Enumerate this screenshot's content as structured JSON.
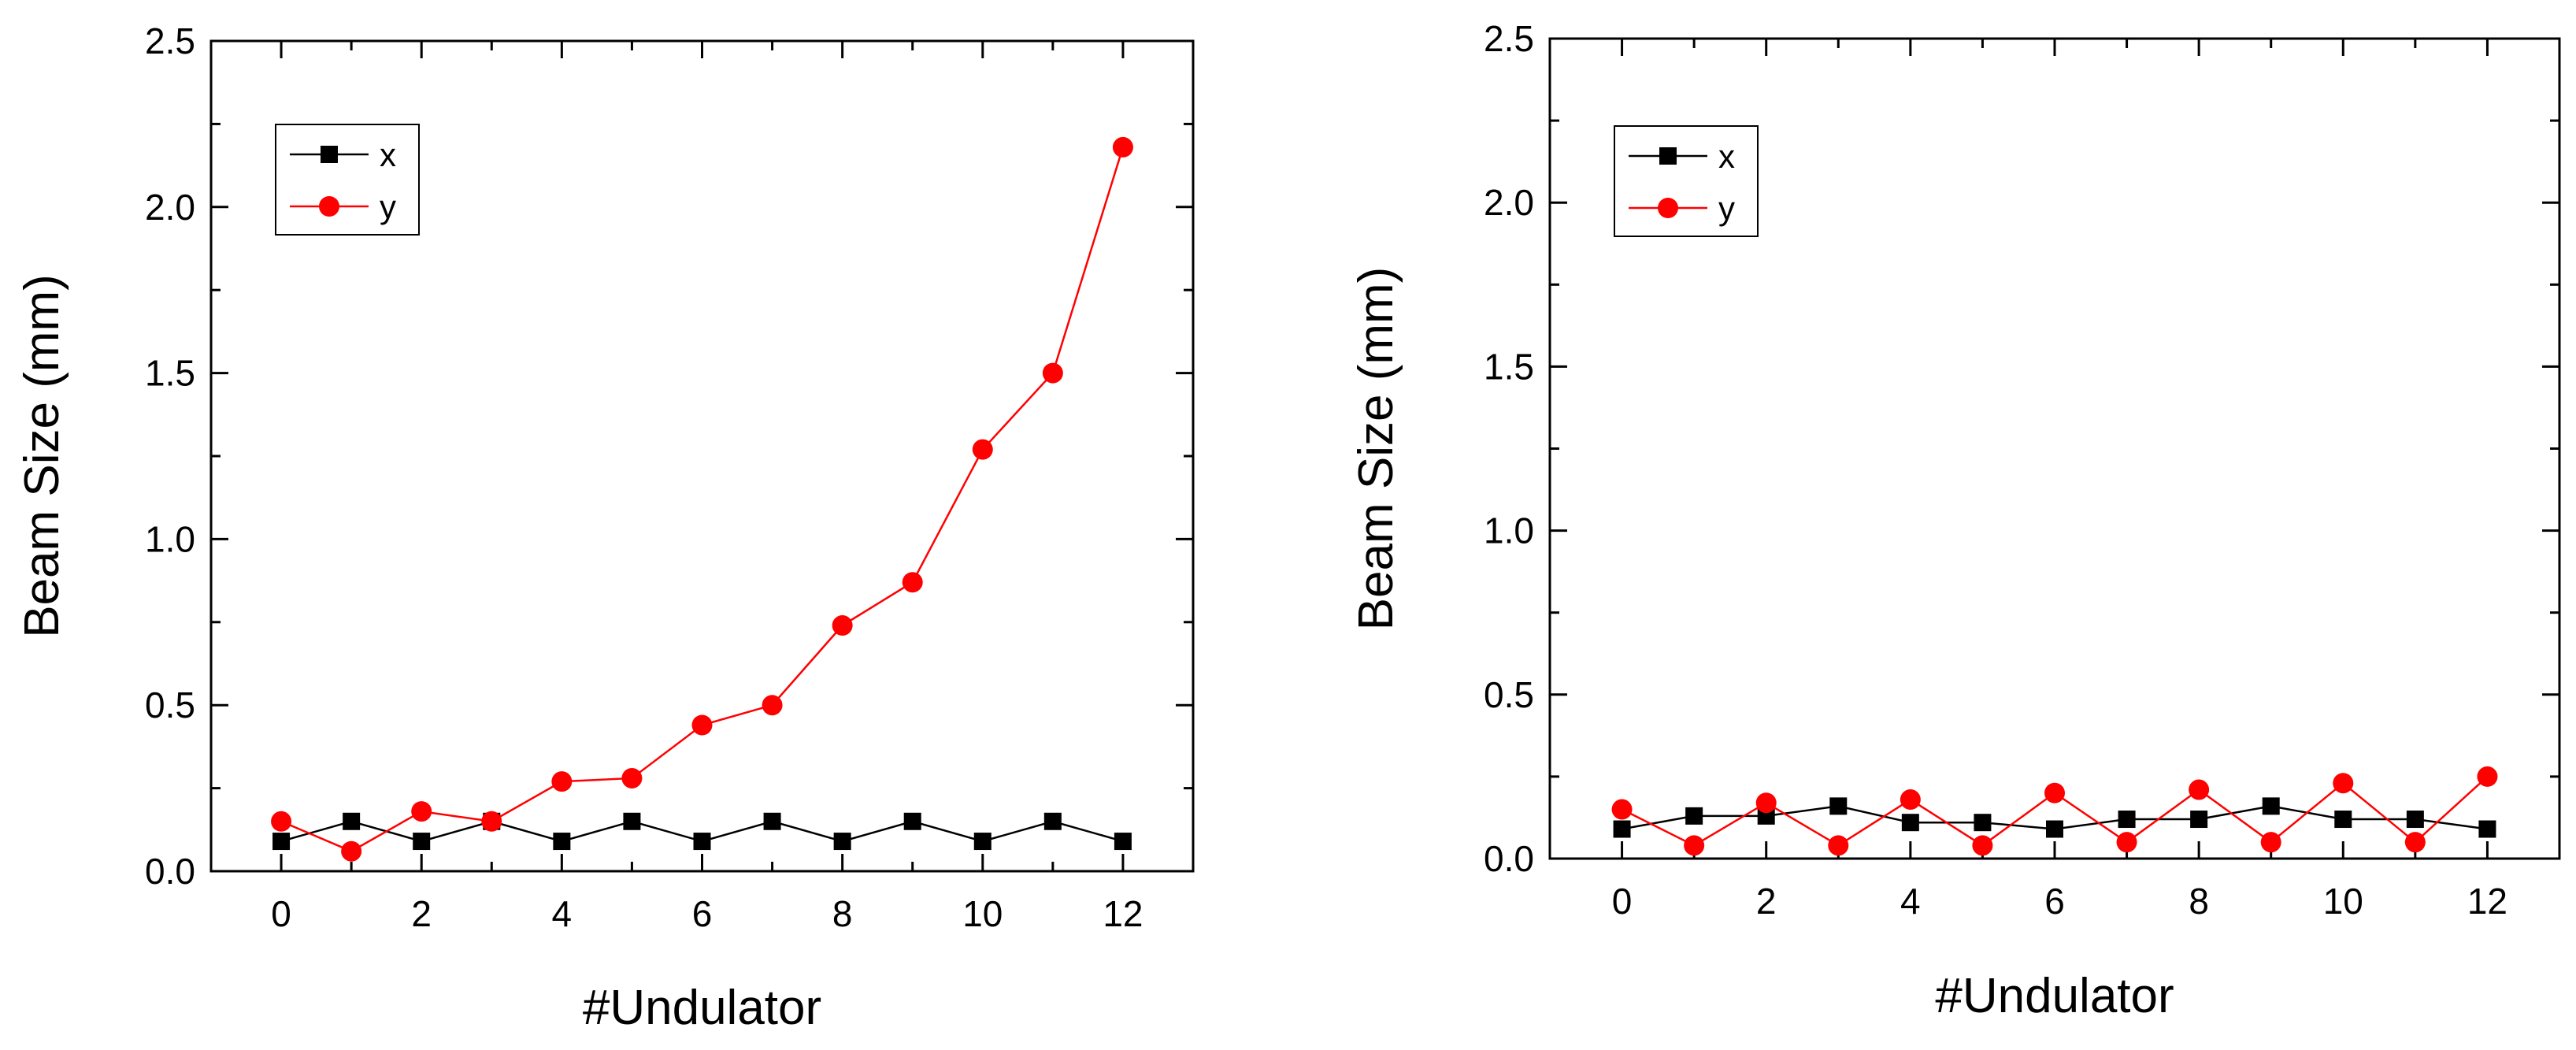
{
  "chart_data": [
    {
      "type": "line",
      "title": "",
      "xlabel": "#Undulator",
      "ylabel": "Beam Size (mm)",
      "xlim": [
        -1,
        13
      ],
      "ylim": [
        0,
        2.5
      ],
      "xticks": [
        0,
        2,
        4,
        6,
        8,
        10,
        12
      ],
      "xtick_labels": [
        "0",
        "2",
        "4",
        "6",
        "8",
        "10",
        "12"
      ],
      "yticks": [
        0,
        0.5,
        1,
        1.5,
        2,
        2.5
      ],
      "ytick_labels": [
        "0.0",
        "0.5",
        "1.0",
        "1.5",
        "2.0",
        "2.5"
      ],
      "legend_position": "top-left",
      "x": [
        0,
        1,
        2,
        3,
        4,
        5,
        6,
        7,
        8,
        9,
        10,
        11,
        12
      ],
      "series": [
        {
          "name": "x",
          "color": "#000000",
          "marker": "square",
          "values": [
            0.09,
            0.15,
            0.09,
            0.15,
            0.09,
            0.15,
            0.09,
            0.15,
            0.09,
            0.15,
            0.09,
            0.15,
            0.09
          ]
        },
        {
          "name": "y",
          "color": "#ff0000",
          "marker": "circle",
          "values": [
            0.15,
            0.06,
            0.18,
            0.15,
            0.27,
            0.28,
            0.44,
            0.5,
            0.74,
            0.87,
            1.27,
            1.5,
            2.18
          ]
        }
      ]
    },
    {
      "type": "line",
      "title": "",
      "xlabel": "#Undulator",
      "ylabel": "Beam Size (mm)",
      "xlim": [
        -1,
        13
      ],
      "ylim": [
        0,
        2.5
      ],
      "xticks": [
        0,
        2,
        4,
        6,
        8,
        10,
        12
      ],
      "xtick_labels": [
        "0",
        "2",
        "4",
        "6",
        "8",
        "10",
        "12"
      ],
      "yticks": [
        0,
        0.5,
        1,
        1.5,
        2,
        2.5
      ],
      "ytick_labels": [
        "0.0",
        "0.5",
        "1.0",
        "1.5",
        "2.0",
        "2.5"
      ],
      "legend_position": "top-left",
      "x": [
        0,
        1,
        2,
        3,
        4,
        5,
        6,
        7,
        8,
        9,
        10,
        11,
        12
      ],
      "series": [
        {
          "name": "x",
          "color": "#000000",
          "marker": "square",
          "values": [
            0.09,
            0.13,
            0.13,
            0.16,
            0.11,
            0.11,
            0.09,
            0.12,
            0.12,
            0.16,
            0.12,
            0.12,
            0.09
          ]
        },
        {
          "name": "y",
          "color": "#ff0000",
          "marker": "circle",
          "values": [
            0.15,
            0.04,
            0.17,
            0.04,
            0.18,
            0.04,
            0.2,
            0.05,
            0.21,
            0.05,
            0.23,
            0.05,
            0.25
          ]
        }
      ]
    }
  ]
}
